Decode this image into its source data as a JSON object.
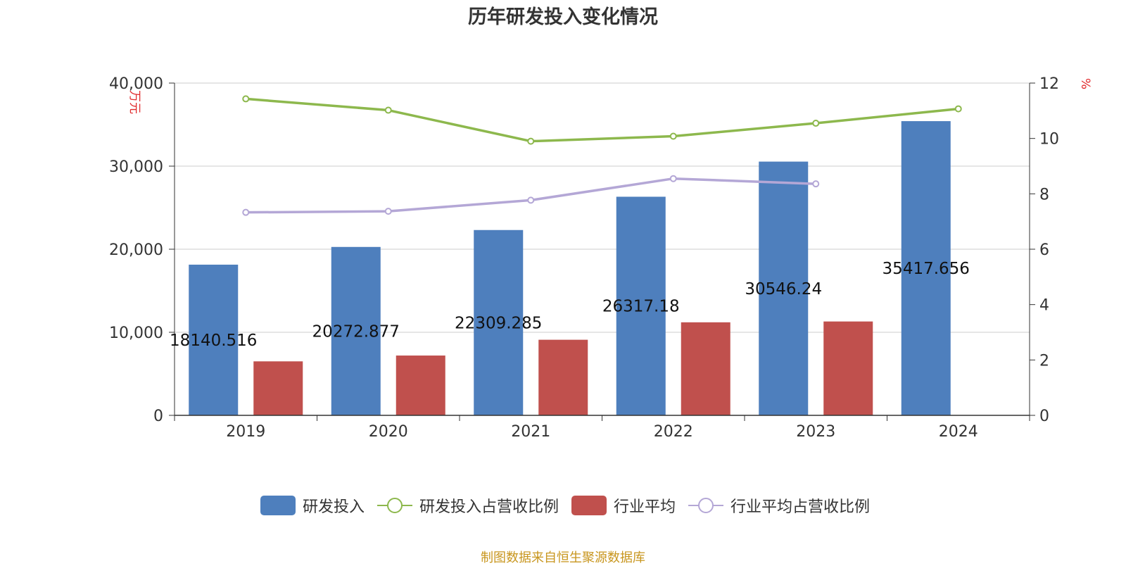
{
  "title": "历年研发投入变化情况",
  "source": "制图数据来自恒生聚源数据库",
  "colors": {
    "rd": "#4e7fbd",
    "rd_ratio": "#8db84d",
    "industry": "#c0504d",
    "industry_ratio": "#b4a7d6",
    "unit_label": "#e0292b",
    "axis_text": "#333333",
    "grid": "#cccccc"
  },
  "legend": {
    "rd": "研发投入",
    "rd_ratio": "研发投入占营收比例",
    "industry": "行业平均",
    "industry_ratio": "行业平均占营收比例"
  },
  "chart_data": {
    "type": "bar",
    "title": "历年研发投入变化情况",
    "categories": [
      "2019",
      "2020",
      "2021",
      "2022",
      "2023",
      "2024"
    ],
    "y_left": {
      "label": "万元",
      "range": [
        0,
        40000
      ],
      "ticks": [
        0,
        10000,
        20000,
        30000,
        40000
      ],
      "tick_labels": [
        "0",
        "10,000",
        "20,000",
        "30,000",
        "40,000"
      ]
    },
    "y_right": {
      "label": "%",
      "range": [
        0,
        12
      ],
      "ticks": [
        0,
        2,
        4,
        6,
        8,
        10,
        12
      ],
      "tick_labels": [
        "0",
        "2",
        "4",
        "6",
        "8",
        "10",
        "12"
      ]
    },
    "grid": true,
    "legend_position": "bottom",
    "series": [
      {
        "name": "研发投入",
        "kind": "bar",
        "axis": "left",
        "values": [
          18140.516,
          20272.877,
          22309.285,
          26317.18,
          30546.24,
          35417.656
        ],
        "data_labels": [
          "18140.516",
          "20272.877",
          "22309.285",
          "26317.18",
          "30546.24",
          "35417.656"
        ]
      },
      {
        "name": "行业平均",
        "kind": "bar",
        "axis": "left",
        "values": [
          6500,
          7200,
          9100,
          11200,
          11300,
          null
        ]
      },
      {
        "name": "研发投入占营收比例",
        "kind": "line",
        "axis": "right",
        "values": [
          11.43,
          11.02,
          9.9,
          10.08,
          10.55,
          11.07
        ]
      },
      {
        "name": "行业平均占营收比例",
        "kind": "line",
        "axis": "right",
        "values": [
          7.33,
          7.37,
          7.77,
          8.55,
          8.36,
          null
        ]
      }
    ]
  }
}
